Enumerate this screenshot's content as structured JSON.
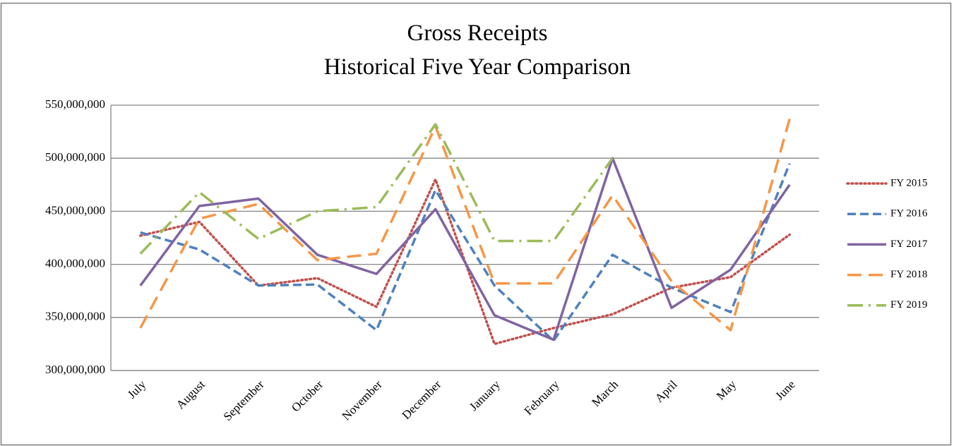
{
  "chart_data": {
    "type": "line",
    "title": "Gross Receipts",
    "subtitle": "Historical Five Year Comparison",
    "categories": [
      "July",
      "August",
      "September",
      "October",
      "November",
      "December",
      "January",
      "February",
      "March",
      "April",
      "May",
      "June"
    ],
    "ylim": [
      300000000,
      550000000
    ],
    "yticks": [
      {
        "value": 300000000,
        "label": "300,000,000"
      },
      {
        "value": 350000000,
        "label": "350,000,000"
      },
      {
        "value": 400000000,
        "label": "400,000,000"
      },
      {
        "value": 450000000,
        "label": "450,000,000"
      },
      {
        "value": 500000000,
        "label": "500,000,000"
      },
      {
        "value": 550000000,
        "label": "550,000,000"
      }
    ],
    "grid": true,
    "legend": "right",
    "series": [
      {
        "name": "FY 2015",
        "color": "#c0504d",
        "dash": "dotted",
        "values": [
          427000000,
          440000000,
          380000000,
          387000000,
          360000000,
          480000000,
          325000000,
          340000000,
          353000000,
          378000000,
          388000000,
          428000000
        ]
      },
      {
        "name": "FY 2016",
        "color": "#4f81bd",
        "dash": "dashed",
        "values": [
          430000000,
          414000000,
          380000000,
          381000000,
          338000000,
          470000000,
          380000000,
          328000000,
          409000000,
          378000000,
          355000000,
          495000000
        ]
      },
      {
        "name": "FY 2017",
        "color": "#8064a2",
        "dash": "solid",
        "values": [
          380000000,
          455000000,
          462000000,
          409000000,
          391000000,
          452000000,
          352000000,
          329000000,
          500000000,
          359000000,
          395000000,
          475000000
        ]
      },
      {
        "name": "FY 2018",
        "color": "#f79646",
        "dash": "long-dashed",
        "values": [
          340000000,
          443000000,
          457000000,
          404000000,
          410000000,
          530000000,
          382000000,
          382000000,
          465000000,
          384000000,
          338000000,
          537000000
        ]
      },
      {
        "name": "FY 2019",
        "color": "#9bbb59",
        "dash": "dash-dot",
        "values": [
          410000000,
          468000000,
          424000000,
          450000000,
          454000000,
          532000000,
          422000000,
          422000000,
          500000000,
          null,
          null,
          null
        ]
      }
    ]
  }
}
